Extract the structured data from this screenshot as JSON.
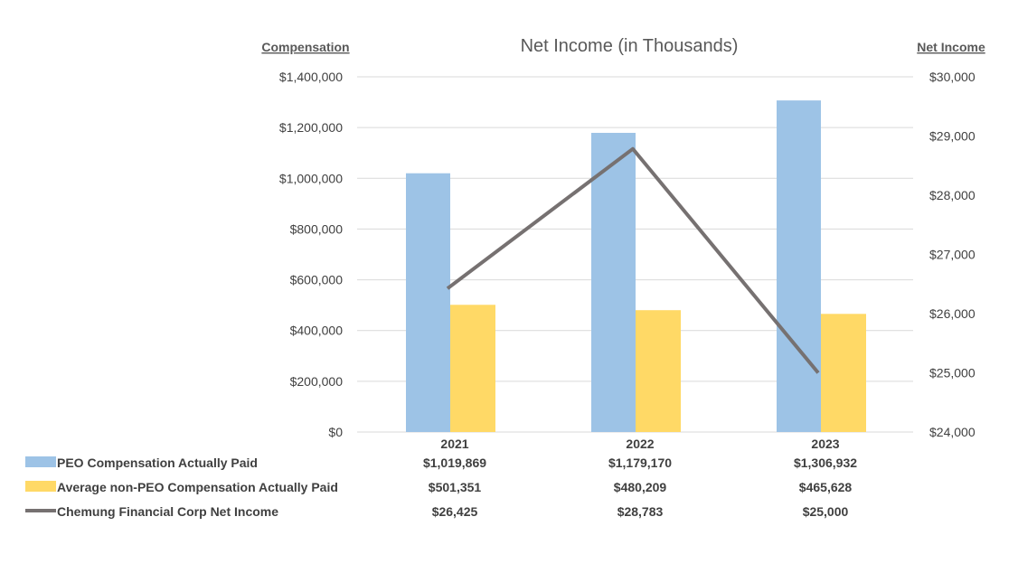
{
  "chart_data": {
    "type": "bar+line",
    "title": "Net Income (in Thousands)",
    "ylabel_left": "Compensation",
    "ylabel_right": "Net Income",
    "categories": [
      "2021",
      "2022",
      "2023"
    ],
    "ylim_left": [
      0,
      1400000
    ],
    "ylim_right": [
      24000,
      30000
    ],
    "left_ticks": [
      "$0",
      "$200,000",
      "$400,000",
      "$600,000",
      "$800,000",
      "$1,000,000",
      "$1,200,000",
      "$1,400,000"
    ],
    "left_tick_values": [
      0,
      200000,
      400000,
      600000,
      800000,
      1000000,
      1200000,
      1400000
    ],
    "right_ticks": [
      "$24,000",
      "$25,000",
      "$26,000",
      "$27,000",
      "$28,000",
      "$29,000",
      "$30,000"
    ],
    "right_tick_values": [
      24000,
      25000,
      26000,
      27000,
      28000,
      29000,
      30000
    ],
    "grid": true,
    "legend_placement": "bottom (data table)",
    "series": [
      {
        "name": "PEO Compensation Actually Paid",
        "type": "bar",
        "axis": "left",
        "color": "#9DC3E6",
        "values": [
          1019869,
          1179170,
          1306932
        ],
        "labels": [
          "$1,019,869",
          "$1,179,170",
          "$1,306,932"
        ]
      },
      {
        "name": "Average non-PEO Compensation Actually Paid",
        "type": "bar",
        "axis": "left",
        "color": "#FFD966",
        "values": [
          501351,
          480209,
          465628
        ],
        "labels": [
          "$501,351",
          "$480,209",
          "$465,628"
        ]
      },
      {
        "name": "Chemung Financial Corp Net Income",
        "type": "line",
        "axis": "right",
        "color": "#767171",
        "values": [
          26425,
          28783,
          25000
        ],
        "labels": [
          "$26,425",
          "$28,783",
          "$25,000"
        ]
      }
    ]
  }
}
